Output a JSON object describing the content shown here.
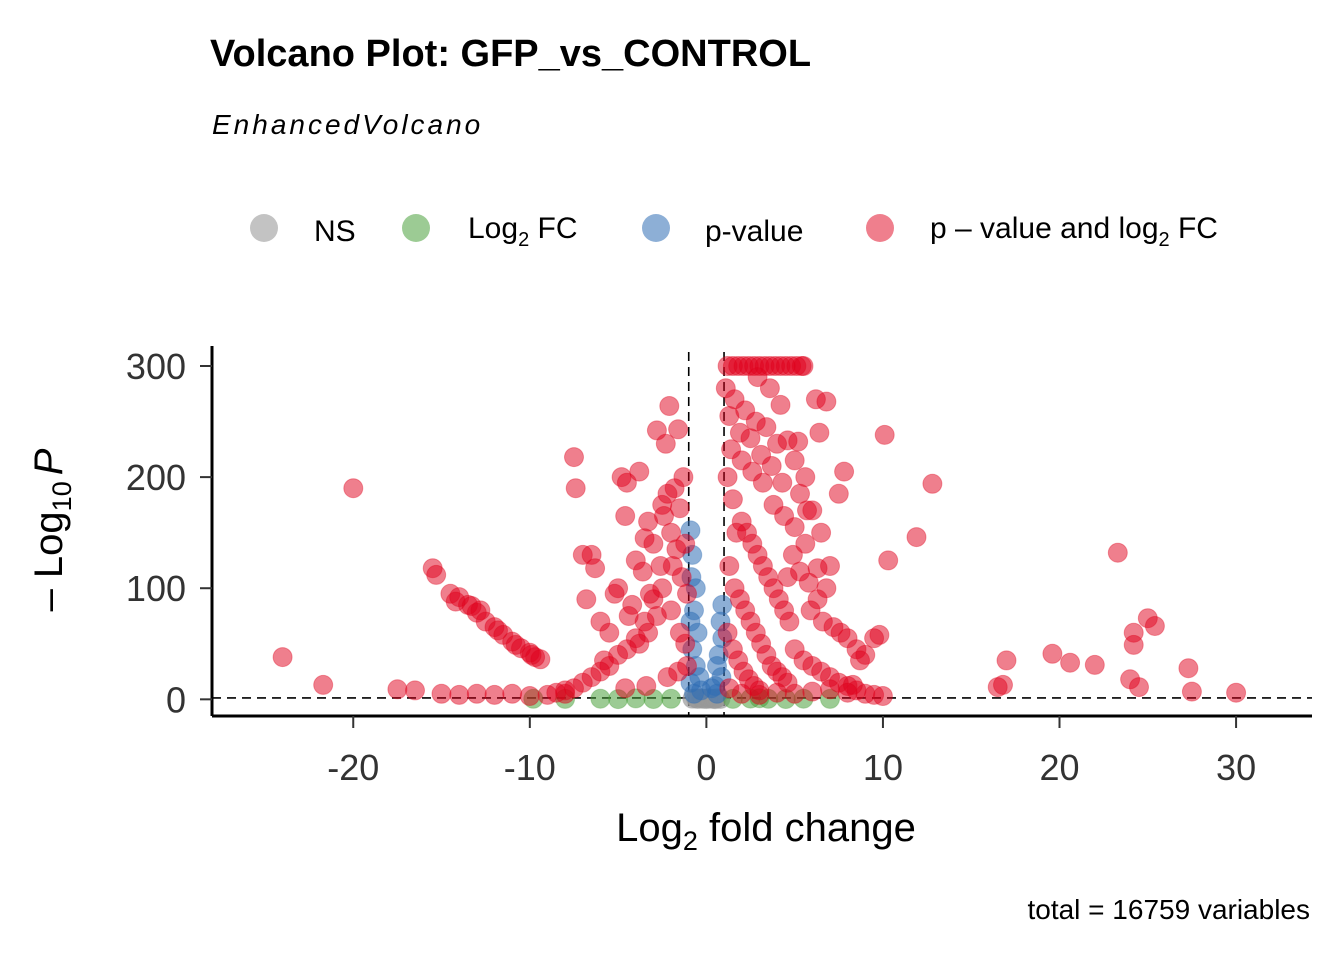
{
  "chart_data": {
    "type": "scatter",
    "title": "Volcano Plot: GFP_vs_CONTROL",
    "subtitle": "EnhancedVolcano",
    "caption": "total = 16759 variables",
    "xlabel": {
      "base": "Log",
      "sub": "2",
      "rest": " fold change"
    },
    "ylabel": {
      "prefix": "– Log",
      "sub": "10",
      "italic": "P"
    },
    "xlim": [
      -28,
      34.3
    ],
    "ylim": [
      -15,
      318
    ],
    "xticks": [
      -20,
      -10,
      0,
      10,
      20,
      30
    ],
    "xtick_labels": [
      "-20",
      "-10",
      "0",
      "10",
      "20",
      "30"
    ],
    "yticks": [
      0,
      100,
      200,
      300
    ],
    "ytick_labels": [
      "0",
      "100",
      "200",
      "300"
    ],
    "fc_cutoff": 1,
    "p_cutoff_log10": 1.3,
    "legend": [
      {
        "key": "NS",
        "label": "NS",
        "color": "#a9a9a9"
      },
      {
        "key": "FC",
        "label": "Log",
        "sub": "2",
        "rest": " FC",
        "color": "#4ba13d"
      },
      {
        "key": "P",
        "label": "p-value",
        "color": "#2f6eb5"
      },
      {
        "key": "PFC",
        "label": "p – value and log",
        "sub": "2",
        "rest": " FC",
        "color": "#e0001b"
      }
    ],
    "series": [
      {
        "name": "NS",
        "color": "#999999",
        "points": [
          [
            -0.8,
            0.5
          ],
          [
            -0.5,
            0.3
          ],
          [
            -0.3,
            0.8
          ],
          [
            0,
            0.2
          ],
          [
            0.2,
            0.6
          ],
          [
            0.4,
            0.4
          ],
          [
            0.6,
            0.9
          ],
          [
            0.8,
            0.3
          ],
          [
            -0.6,
            1.0
          ],
          [
            0.1,
            1.1
          ],
          [
            -0.2,
            0.4
          ],
          [
            0.5,
            0.1
          ]
        ]
      },
      {
        "name": "Log2 FC",
        "color": "#4ba13d",
        "points": [
          [
            -9.8,
            0.5
          ],
          [
            -8,
            0.4
          ],
          [
            -6,
            0.6
          ],
          [
            -4,
            0.8
          ],
          [
            -3,
            0.3
          ],
          [
            -2,
            0.5
          ],
          [
            1.5,
            0.4
          ],
          [
            2.5,
            0.7
          ],
          [
            3.5,
            0.5
          ],
          [
            4.5,
            0.3
          ],
          [
            5.5,
            0.6
          ],
          [
            7,
            0.4
          ],
          [
            -5,
            0.2
          ],
          [
            3,
            1.0
          ]
        ]
      },
      {
        "name": "p-value",
        "color": "#2f6eb5",
        "points": [
          [
            -0.9,
            152
          ],
          [
            -0.8,
            130
          ],
          [
            -0.85,
            110
          ],
          [
            -0.6,
            100
          ],
          [
            -0.7,
            80
          ],
          [
            -0.9,
            70
          ],
          [
            -0.5,
            60
          ],
          [
            -0.8,
            45
          ],
          [
            -0.6,
            30
          ],
          [
            -0.4,
            20
          ],
          [
            -0.9,
            15
          ],
          [
            0.8,
            70
          ],
          [
            0.9,
            55
          ],
          [
            0.7,
            40
          ],
          [
            0.6,
            30
          ],
          [
            0.85,
            20
          ],
          [
            0.5,
            12
          ],
          [
            -0.3,
            8
          ],
          [
            0.3,
            10
          ],
          [
            0.9,
            85
          ],
          [
            -0.7,
            5
          ],
          [
            0.6,
            5
          ]
        ]
      },
      {
        "name": "p - value and log2 FC",
        "color": "#e0001b",
        "points": [
          [
            -24,
            38
          ],
          [
            -21.7,
            13
          ],
          [
            -20,
            190
          ],
          [
            -17.5,
            9
          ],
          [
            -16.5,
            8
          ],
          [
            -15.5,
            118
          ],
          [
            -15.3,
            112
          ],
          [
            -14.5,
            95
          ],
          [
            -14.2,
            88
          ],
          [
            -13.5,
            85
          ],
          [
            -13,
            78
          ],
          [
            -12.5,
            70
          ],
          [
            -12,
            65
          ],
          [
            -11.5,
            58
          ],
          [
            -11,
            52
          ],
          [
            -10.5,
            46
          ],
          [
            -10,
            42
          ],
          [
            -9.7,
            38
          ],
          [
            -9.4,
            36
          ],
          [
            -12.8,
            80
          ],
          [
            -13.3,
            84
          ],
          [
            -14,
            92
          ],
          [
            -11.8,
            62
          ],
          [
            -10.8,
            49
          ],
          [
            -9.9,
            40
          ],
          [
            -15,
            5
          ],
          [
            -14,
            4
          ],
          [
            -13,
            5
          ],
          [
            -12,
            4
          ],
          [
            -11,
            5
          ],
          [
            -10,
            3
          ],
          [
            -9,
            4
          ],
          [
            -8,
            5
          ],
          [
            -7.5,
            218
          ],
          [
            -7.4,
            190
          ],
          [
            -7,
            130
          ],
          [
            -6.8,
            90
          ],
          [
            -6.5,
            130
          ],
          [
            -6.3,
            118
          ],
          [
            -6,
            70
          ],
          [
            -5.8,
            35
          ],
          [
            -5.5,
            60
          ],
          [
            -5.2,
            95
          ],
          [
            -5,
            100
          ],
          [
            -4.8,
            200
          ],
          [
            -4.6,
            165
          ],
          [
            -4.5,
            195
          ],
          [
            -4.4,
            75
          ],
          [
            -4.2,
            85
          ],
          [
            -4,
            125
          ],
          [
            -3.8,
            205
          ],
          [
            -3.6,
            115
          ],
          [
            -3.5,
            145
          ],
          [
            -3.3,
            160
          ],
          [
            -3.2,
            95
          ],
          [
            -3,
            140
          ],
          [
            -2.8,
            242
          ],
          [
            -2.6,
            120
          ],
          [
            -2.5,
            175
          ],
          [
            -2.4,
            165
          ],
          [
            -2.3,
            230
          ],
          [
            -2.2,
            185
          ],
          [
            -2.1,
            264
          ],
          [
            -2.0,
            150
          ],
          [
            -1.9,
            120
          ],
          [
            -1.8,
            190
          ],
          [
            -1.7,
            135
          ],
          [
            -1.6,
            243
          ],
          [
            -1.5,
            172
          ],
          [
            -1.4,
            110
          ],
          [
            -1.3,
            200
          ],
          [
            -1.2,
            140
          ],
          [
            -1.1,
            95
          ],
          [
            -2.5,
            100
          ],
          [
            -3,
            90
          ],
          [
            -3.5,
            70
          ],
          [
            -4,
            55
          ],
          [
            -4.5,
            45
          ],
          [
            -5,
            40
          ],
          [
            -5.5,
            30
          ],
          [
            -6,
            25
          ],
          [
            -6.5,
            20
          ],
          [
            -7,
            15
          ],
          [
            -7.5,
            10
          ],
          [
            -8,
            8
          ],
          [
            -8.5,
            6
          ],
          [
            -2,
            80
          ],
          [
            -1.5,
            60
          ],
          [
            -1.2,
            50
          ],
          [
            -2.8,
            75
          ],
          [
            -3.3,
            60
          ],
          [
            -3.8,
            50
          ],
          [
            -1.1,
            30
          ],
          [
            -1.6,
            25
          ],
          [
            -2.2,
            20
          ],
          [
            -3.4,
            12
          ],
          [
            -4.6,
            10
          ],
          [
            1.2,
            300
          ],
          [
            1.5,
            300
          ],
          [
            1.8,
            300
          ],
          [
            2.1,
            300
          ],
          [
            2.4,
            300
          ],
          [
            2.7,
            300
          ],
          [
            3,
            300
          ],
          [
            3.3,
            300
          ],
          [
            3.6,
            300
          ],
          [
            3.9,
            300
          ],
          [
            4.2,
            300
          ],
          [
            4.5,
            300
          ],
          [
            4.8,
            300
          ],
          [
            5.1,
            300
          ],
          [
            5.4,
            300
          ],
          [
            5.5,
            300
          ],
          [
            1.1,
            280
          ],
          [
            1.3,
            255
          ],
          [
            1.6,
            270
          ],
          [
            1.9,
            240
          ],
          [
            2.2,
            260
          ],
          [
            2.5,
            235
          ],
          [
            2.8,
            250
          ],
          [
            3.1,
            220
          ],
          [
            3.4,
            245
          ],
          [
            3.7,
            210
          ],
          [
            4,
            230
          ],
          [
            4.3,
            195
          ],
          [
            4.6,
            233
          ],
          [
            5,
            215
          ],
          [
            5.2,
            232
          ],
          [
            5.6,
            200
          ],
          [
            6.2,
            270
          ],
          [
            6.4,
            240
          ],
          [
            6.8,
            268
          ],
          [
            5.3,
            185
          ],
          [
            5.7,
            170
          ],
          [
            6,
            170
          ],
          [
            6.5,
            150
          ],
          [
            7,
            120
          ],
          [
            7.5,
            185
          ],
          [
            7.8,
            205
          ],
          [
            6.8,
            100
          ],
          [
            6.3,
            90
          ],
          [
            5.9,
            80
          ],
          [
            6.6,
            70
          ],
          [
            7.2,
            65
          ],
          [
            7.6,
            60
          ],
          [
            8,
            55
          ],
          [
            8.5,
            45
          ],
          [
            9,
            40
          ],
          [
            9.5,
            55
          ],
          [
            9.8,
            58
          ],
          [
            10.1,
            238
          ],
          [
            10.3,
            125
          ],
          [
            11.9,
            146
          ],
          [
            12.8,
            194
          ],
          [
            1.2,
            200
          ],
          [
            1.5,
            180
          ],
          [
            2,
            160
          ],
          [
            2.3,
            150
          ],
          [
            2.6,
            140
          ],
          [
            2.9,
            130
          ],
          [
            3.2,
            120
          ],
          [
            3.5,
            110
          ],
          [
            3.8,
            100
          ],
          [
            4.1,
            90
          ],
          [
            4.4,
            80
          ],
          [
            4.7,
            70
          ],
          [
            1.3,
            120
          ],
          [
            1.6,
            100
          ],
          [
            1.9,
            90
          ],
          [
            2.2,
            80
          ],
          [
            2.5,
            70
          ],
          [
            2.8,
            60
          ],
          [
            3.1,
            50
          ],
          [
            3.4,
            40
          ],
          [
            3.7,
            30
          ],
          [
            4,
            25
          ],
          [
            4.3,
            20
          ],
          [
            4.6,
            15
          ],
          [
            1.2,
            60
          ],
          [
            1.5,
            45
          ],
          [
            1.8,
            35
          ],
          [
            2.1,
            25
          ],
          [
            2.4,
            18
          ],
          [
            2.7,
            12
          ],
          [
            3,
            8
          ],
          [
            5,
            45
          ],
          [
            5.5,
            35
          ],
          [
            6,
            30
          ],
          [
            6.5,
            25
          ],
          [
            7,
            20
          ],
          [
            7.5,
            15
          ],
          [
            8,
            12
          ],
          [
            8.5,
            8
          ],
          [
            9,
            5
          ],
          [
            9.5,
            4
          ],
          [
            10,
            3
          ],
          [
            8.3,
            13
          ],
          [
            8.7,
            35
          ],
          [
            16.5,
            11
          ],
          [
            16.8,
            13
          ],
          [
            17,
            35
          ],
          [
            19.6,
            41
          ],
          [
            20.6,
            33
          ],
          [
            22,
            31
          ],
          [
            23.3,
            132
          ],
          [
            24,
            18
          ],
          [
            24.2,
            60
          ],
          [
            24.2,
            49
          ],
          [
            24.5,
            11
          ],
          [
            25,
            73
          ],
          [
            25.4,
            66
          ],
          [
            27.3,
            28
          ],
          [
            27.5,
            7
          ],
          [
            30,
            6
          ],
          [
            1.3,
            10
          ],
          [
            2,
            5
          ],
          [
            3,
            4
          ],
          [
            4,
            6
          ],
          [
            5,
            5
          ],
          [
            6,
            7
          ],
          [
            7,
            9
          ],
          [
            8,
            6
          ],
          [
            2.9,
            290
          ],
          [
            3.6,
            280
          ],
          [
            4.2,
            265
          ],
          [
            1.4,
            225
          ],
          [
            2.0,
            215
          ],
          [
            2.6,
            205
          ],
          [
            3.2,
            195
          ],
          [
            3.8,
            175
          ],
          [
            4.4,
            165
          ],
          [
            5.0,
            155
          ],
          [
            5.6,
            140
          ],
          [
            1.7,
            150
          ],
          [
            4.9,
            130
          ],
          [
            5.3,
            115
          ],
          [
            5.8,
            105
          ],
          [
            6.3,
            118
          ],
          [
            4.6,
            110
          ]
        ]
      }
    ]
  }
}
